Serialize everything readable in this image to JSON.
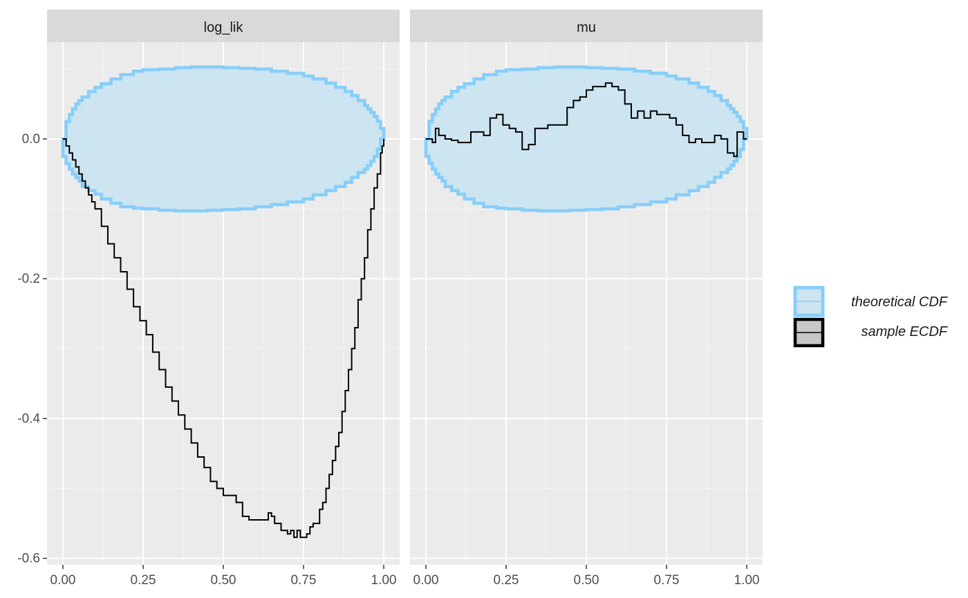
{
  "chart_data": {
    "type": "line",
    "facets": [
      "log_lik",
      "mu"
    ],
    "x_ticks": [
      "0.00",
      "0.25",
      "0.50",
      "0.75",
      "1.00"
    ],
    "y_ticks": [
      "0.0",
      "-0.2",
      "-0.4",
      "-0.6"
    ],
    "xlim": [
      -0.05,
      1.05
    ],
    "ylim": [
      -0.6,
      0.13
    ],
    "grid": true,
    "legend_position": "right",
    "legend": [
      {
        "label": "theoretical CDF",
        "fill": "#cce5f0",
        "stroke": "#87cefa"
      },
      {
        "label": "sample ECDF",
        "fill": "#c8c8c8",
        "stroke": "#000000"
      }
    ],
    "band": {
      "x": [
        0,
        0.01,
        0.02,
        0.03,
        0.04,
        0.05,
        0.06,
        0.08,
        0.1,
        0.12,
        0.15,
        0.18,
        0.22,
        0.25,
        0.3,
        0.35,
        0.4,
        0.45,
        0.5,
        0.55,
        0.6,
        0.65,
        0.7,
        0.75,
        0.78,
        0.82,
        0.85,
        0.88,
        0.9,
        0.92,
        0.94,
        0.95,
        0.96,
        0.97,
        0.98,
        0.99,
        1.0
      ],
      "upper": [
        0,
        0.025,
        0.035,
        0.043,
        0.05,
        0.055,
        0.06,
        0.068,
        0.074,
        0.079,
        0.086,
        0.092,
        0.097,
        0.099,
        0.1,
        0.102,
        0.103,
        0.103,
        0.102,
        0.101,
        0.1,
        0.097,
        0.094,
        0.09,
        0.086,
        0.08,
        0.074,
        0.068,
        0.062,
        0.055,
        0.048,
        0.043,
        0.038,
        0.032,
        0.025,
        0.015,
        0
      ],
      "lower": [
        0,
        -0.025,
        -0.035,
        -0.043,
        -0.05,
        -0.055,
        -0.06,
        -0.068,
        -0.074,
        -0.079,
        -0.086,
        -0.092,
        -0.097,
        -0.099,
        -0.1,
        -0.102,
        -0.103,
        -0.103,
        -0.102,
        -0.101,
        -0.1,
        -0.097,
        -0.094,
        -0.09,
        -0.086,
        -0.08,
        -0.074,
        -0.068,
        -0.062,
        -0.055,
        -0.048,
        -0.043,
        -0.038,
        -0.032,
        -0.025,
        -0.015,
        0
      ]
    },
    "series": [
      {
        "facet": "log_lik",
        "x": [
          0,
          0.01,
          0.02,
          0.03,
          0.04,
          0.05,
          0.06,
          0.07,
          0.08,
          0.09,
          0.1,
          0.12,
          0.14,
          0.16,
          0.18,
          0.2,
          0.22,
          0.24,
          0.26,
          0.28,
          0.3,
          0.32,
          0.34,
          0.36,
          0.38,
          0.4,
          0.42,
          0.44,
          0.46,
          0.48,
          0.5,
          0.52,
          0.54,
          0.56,
          0.58,
          0.6,
          0.62,
          0.64,
          0.65,
          0.66,
          0.68,
          0.7,
          0.71,
          0.72,
          0.73,
          0.74,
          0.75,
          0.76,
          0.77,
          0.78,
          0.79,
          0.8,
          0.81,
          0.82,
          0.83,
          0.84,
          0.85,
          0.86,
          0.87,
          0.88,
          0.89,
          0.9,
          0.91,
          0.92,
          0.93,
          0.94,
          0.95,
          0.96,
          0.97,
          0.98,
          0.99,
          0.995,
          1.0
        ],
        "y": [
          0,
          -0.01,
          -0.02,
          -0.03,
          -0.04,
          -0.05,
          -0.06,
          -0.07,
          -0.08,
          -0.09,
          -0.1,
          -0.125,
          -0.15,
          -0.17,
          -0.19,
          -0.215,
          -0.24,
          -0.26,
          -0.28,
          -0.305,
          -0.33,
          -0.355,
          -0.375,
          -0.395,
          -0.415,
          -0.435,
          -0.455,
          -0.47,
          -0.49,
          -0.5,
          -0.51,
          -0.51,
          -0.52,
          -0.54,
          -0.545,
          -0.545,
          -0.545,
          -0.535,
          -0.54,
          -0.55,
          -0.56,
          -0.565,
          -0.56,
          -0.57,
          -0.56,
          -0.57,
          -0.57,
          -0.565,
          -0.555,
          -0.55,
          -0.55,
          -0.53,
          -0.52,
          -0.5,
          -0.48,
          -0.46,
          -0.44,
          -0.42,
          -0.39,
          -0.36,
          -0.33,
          -0.3,
          -0.27,
          -0.23,
          -0.2,
          -0.17,
          -0.13,
          -0.1,
          -0.07,
          -0.05,
          -0.02,
          -0.01,
          0
        ]
      },
      {
        "facet": "mu",
        "x": [
          0,
          0.02,
          0.03,
          0.04,
          0.06,
          0.08,
          0.1,
          0.12,
          0.14,
          0.16,
          0.18,
          0.2,
          0.22,
          0.24,
          0.26,
          0.28,
          0.3,
          0.32,
          0.34,
          0.36,
          0.38,
          0.4,
          0.42,
          0.44,
          0.46,
          0.48,
          0.5,
          0.52,
          0.54,
          0.56,
          0.58,
          0.6,
          0.62,
          0.64,
          0.66,
          0.68,
          0.7,
          0.72,
          0.74,
          0.76,
          0.78,
          0.8,
          0.82,
          0.84,
          0.86,
          0.88,
          0.9,
          0.92,
          0.94,
          0.96,
          0.97,
          0.98,
          0.99,
          1.0
        ],
        "y": [
          0,
          -0.005,
          0.015,
          0.005,
          0,
          -0.002,
          -0.005,
          -0.005,
          0.01,
          0.01,
          0.005,
          0.03,
          0.035,
          0.02,
          0.015,
          0.01,
          -0.015,
          -0.008,
          0.015,
          0.015,
          0.02,
          0.02,
          0.02,
          0.045,
          0.055,
          0.06,
          0.07,
          0.075,
          0.075,
          0.08,
          0.075,
          0.07,
          0.05,
          0.03,
          0.04,
          0.03,
          0.04,
          0.035,
          0.035,
          0.03,
          0.02,
          0.005,
          -0.005,
          0,
          -0.005,
          -0.005,
          0.005,
          0,
          -0.02,
          -0.025,
          0.01,
          0.01,
          0,
          0
        ]
      }
    ]
  }
}
